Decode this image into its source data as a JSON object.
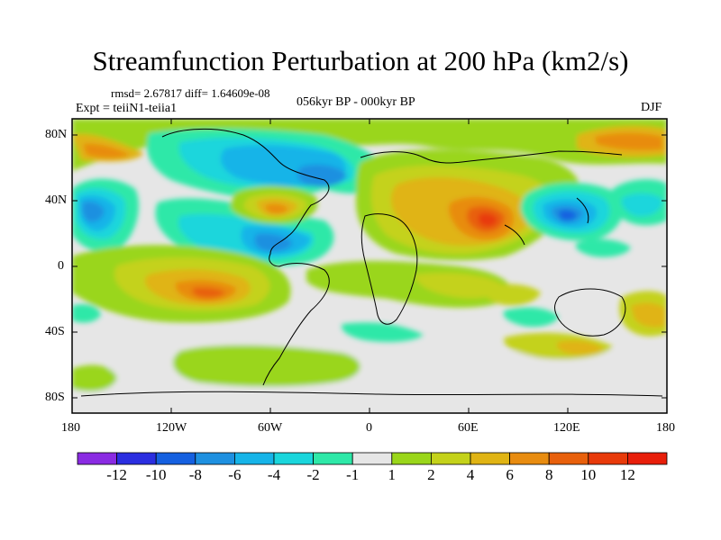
{
  "title": "Streamfunction Perturbation at 200 hPa (km2/s)",
  "stats": "rmsd= 2.67817 diff= 1.64609e-08",
  "experiment": "Expt = teiiN1-teiia1",
  "period": "056kyr BP - 000kyr BP",
  "season": "DJF",
  "lat_ticks": [
    "80N",
    "40N",
    "0",
    "40S",
    "80S"
  ],
  "lon_ticks": [
    "180",
    "120W",
    "60W",
    "0",
    "60E",
    "120E",
    "180"
  ],
  "colorbar": {
    "labels": [
      "-12",
      "-10",
      "-8",
      "-6",
      "-4",
      "-2",
      "-1",
      "1",
      "2",
      "4",
      "6",
      "8",
      "10",
      "12"
    ],
    "colors": [
      "#8a2be2",
      "#2b2ee0",
      "#1560e0",
      "#1e90e0",
      "#16b4e8",
      "#1ad6dc",
      "#2ee8a8",
      "#e6e6e6",
      "#9ad61a",
      "#c4d21a",
      "#e0b414",
      "#e88c10",
      "#e8600c",
      "#e83a0a",
      "#e81e0a"
    ]
  }
}
